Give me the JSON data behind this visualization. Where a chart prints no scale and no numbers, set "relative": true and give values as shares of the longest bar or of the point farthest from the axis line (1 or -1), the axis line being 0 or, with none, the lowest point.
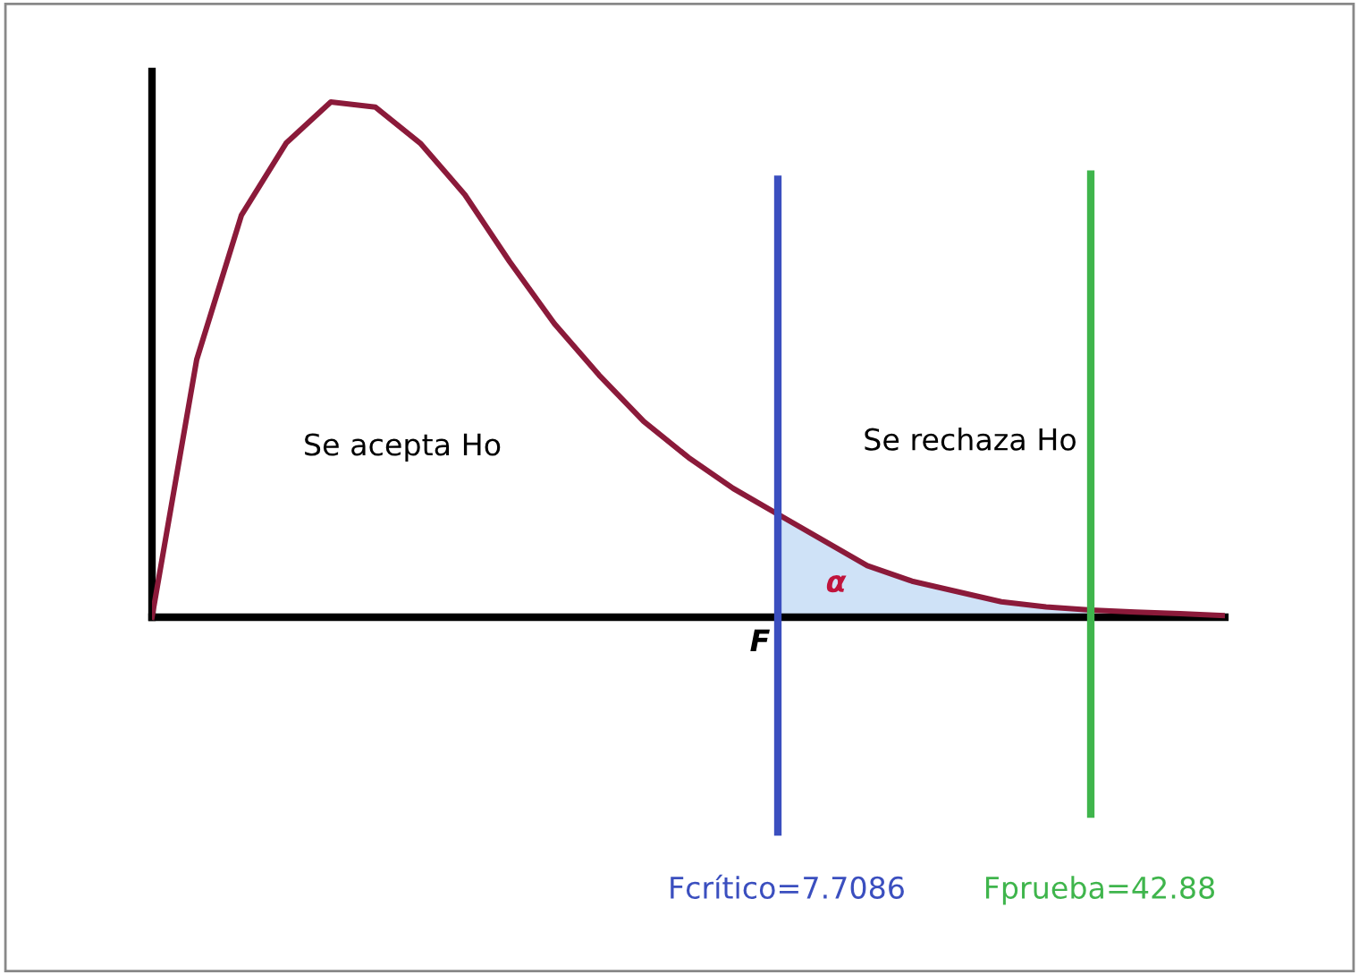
{
  "chart_data": {
    "type": "line",
    "relative": true,
    "categories": [
      null,
      null,
      null,
      null,
      null,
      null,
      null,
      null,
      null,
      null,
      null,
      null,
      null,
      null,
      null,
      null,
      null,
      null,
      null,
      null,
      null,
      null,
      null,
      null,
      null
    ],
    "series": [
      {
        "type": "area",
        "color": "#cfe2f7",
        "values": [
          null,
          null,
          null,
          null,
          null,
          null,
          null,
          null,
          null,
          null,
          null,
          null,
          null,
          null,
          0.2,
          0.15,
          0.1,
          0.07,
          0.05,
          0.03,
          0.02,
          0.014,
          null,
          null,
          null
        ]
      },
      {
        "color": "#8b1a3a",
        "values": [
          0,
          0.5,
          0.78,
          0.92,
          1,
          0.99,
          0.92,
          0.82,
          0.69,
          0.57,
          0.47,
          0.38,
          0.31,
          0.25,
          0.2,
          0.15,
          0.1,
          0.07,
          0.05,
          0.03,
          0.02,
          0.014,
          0.01,
          0.007,
          0.003
        ]
      }
    ],
    "annotations": [
      "Se acepta Ho",
      "Se rechaza Ho",
      "α",
      "F",
      "Fcrítico=7.7086",
      "Fprueba=42.88"
    ],
    "legend": false,
    "marker": "none",
    "line_style": "solid"
  }
}
